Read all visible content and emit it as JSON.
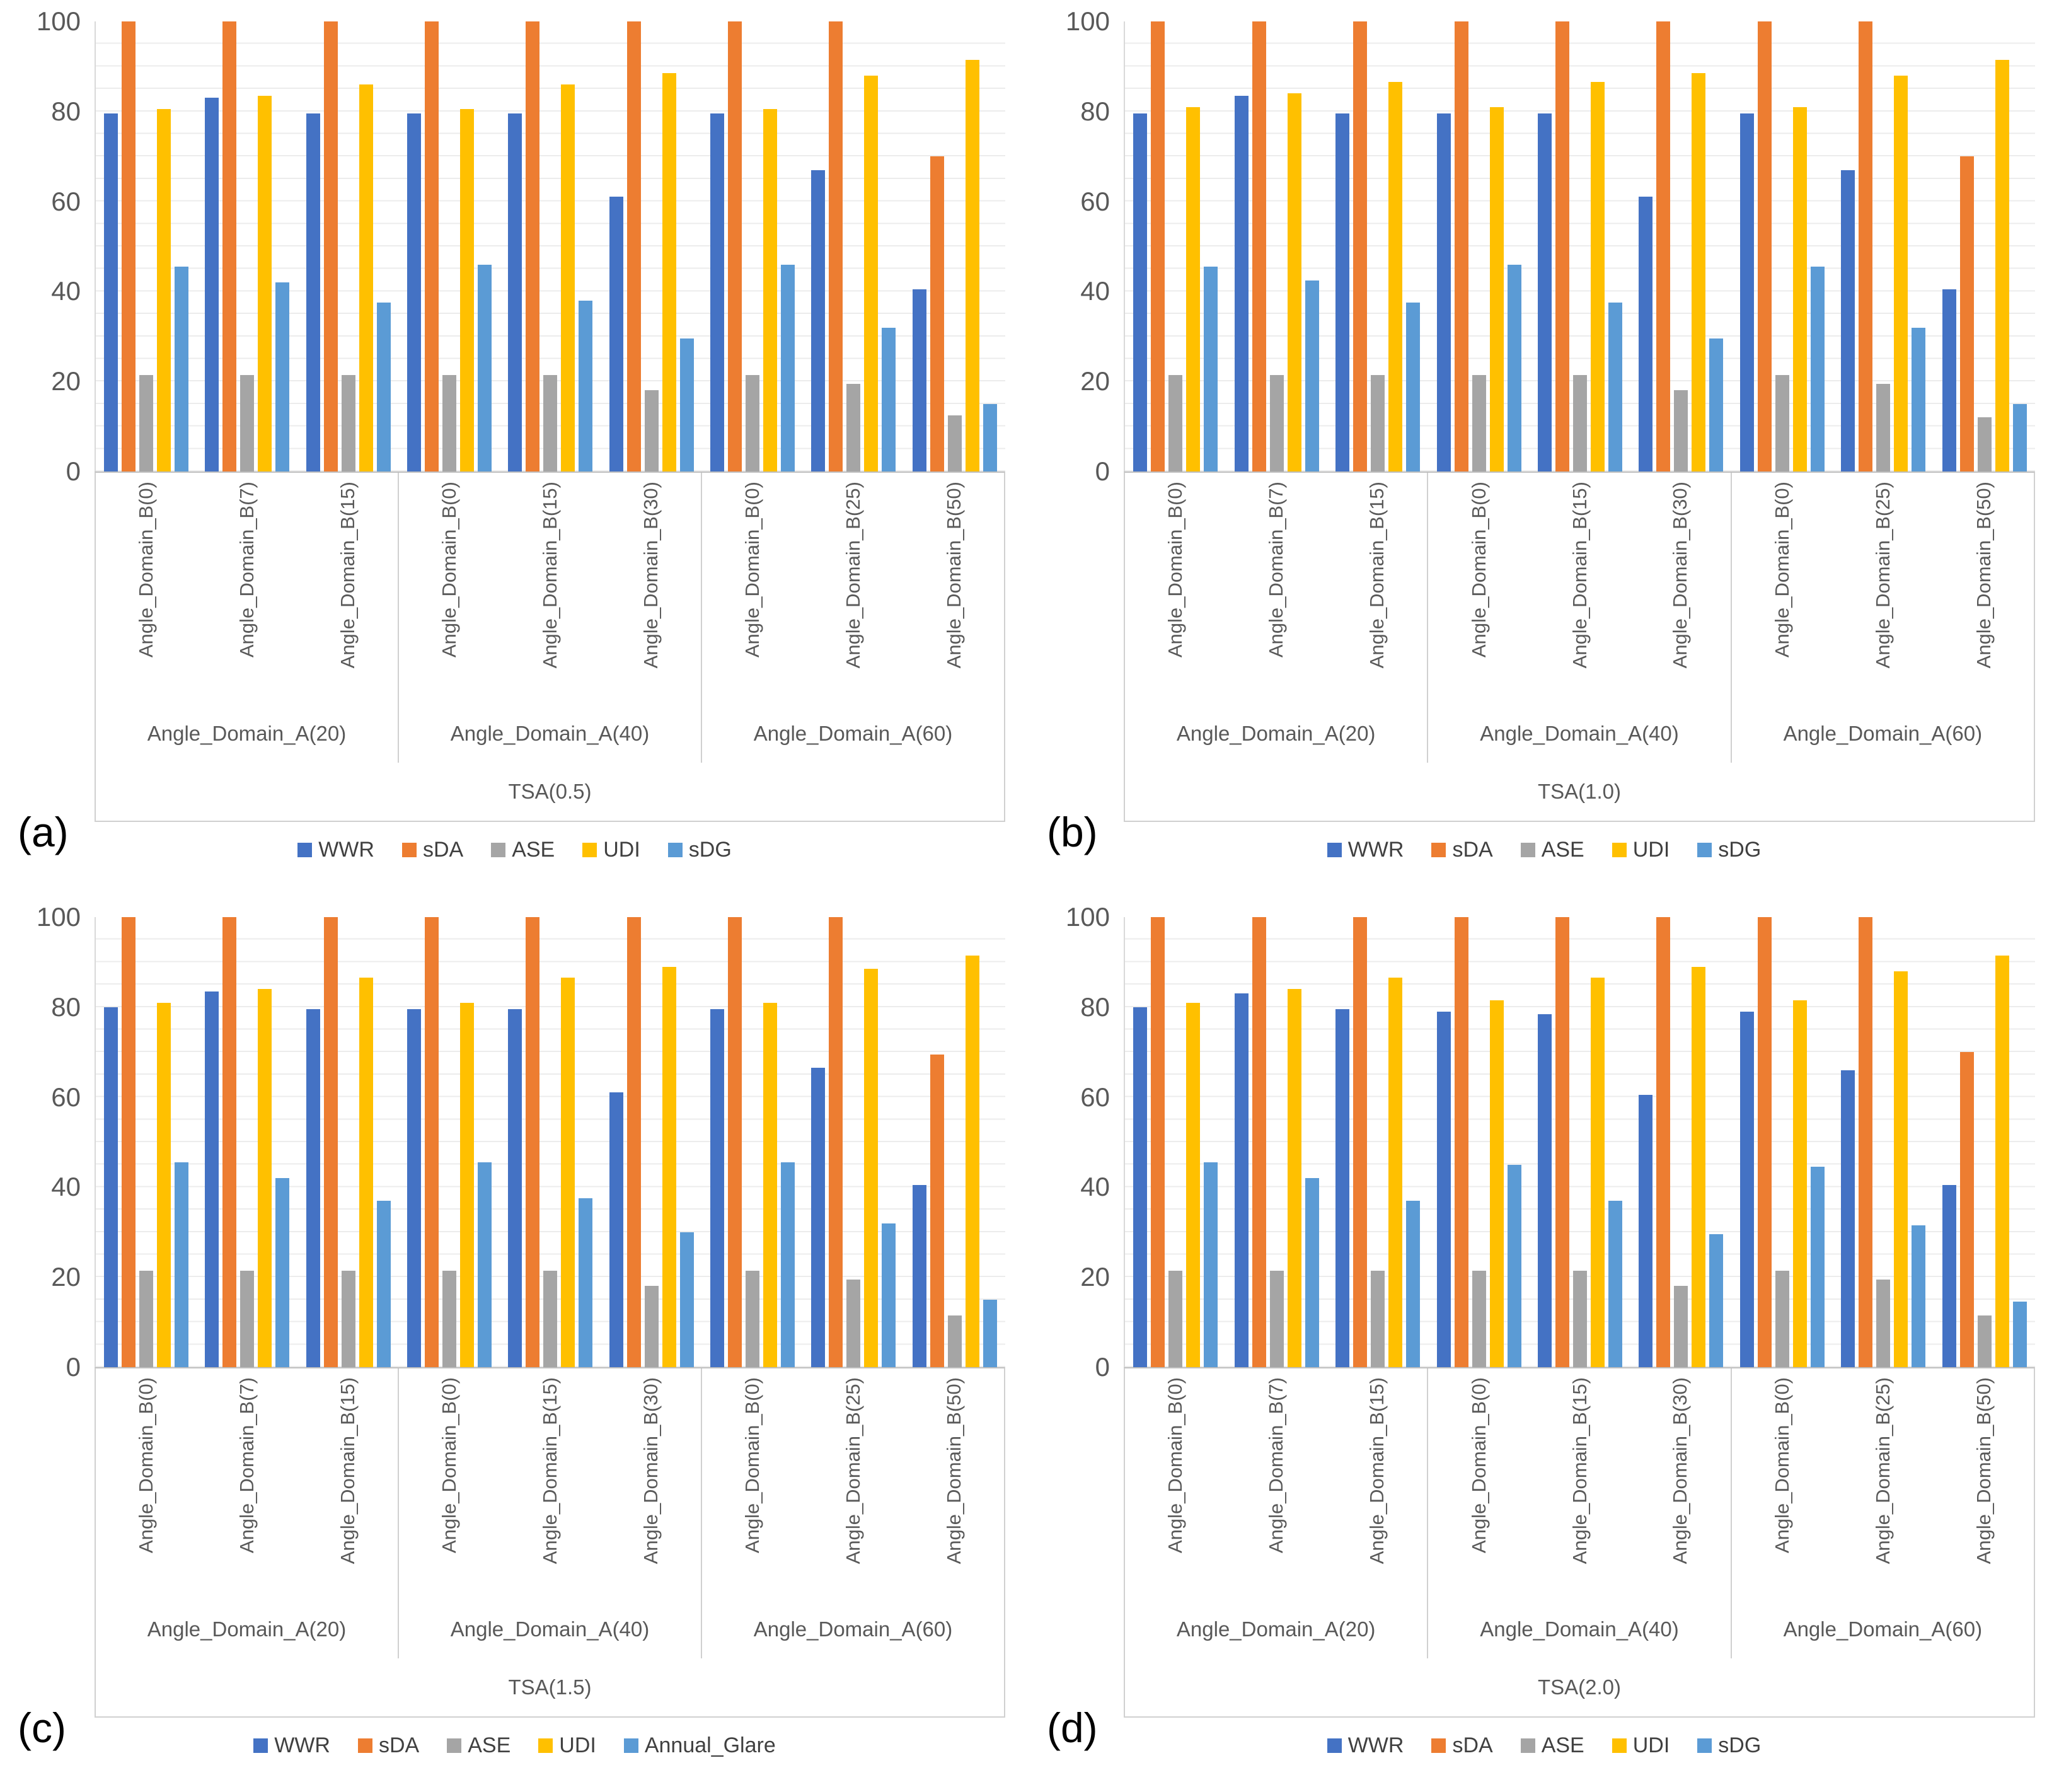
{
  "figure": {
    "y_axis": {
      "min": 0,
      "max": 100,
      "ticks": [
        0,
        20,
        40,
        60,
        80,
        100
      ],
      "minor_grid_step": 5,
      "grid_on": true
    },
    "series_colors": {
      "WWR": "#4472C4",
      "sDA": "#ED7D31",
      "ASE": "#A5A5A5",
      "UDI": "#FFC000",
      "sDG": "#5B9BD5",
      "Annual_Glare": "#5B9BD5"
    },
    "legend_position": "bottom-center"
  },
  "chart_data": [
    {
      "type": "bar",
      "panel_label": "(a)",
      "axis_title": "TSA(0.5)",
      "group_labels": [
        "Angle_Domain_A(20)",
        "Angle_Domain_A(40)",
        "Angle_Domain_A(60)"
      ],
      "categories": [
        [
          "Angle_Domain_B(0)",
          "Angle_Domain_B(7)",
          "Angle_Domain_B(15)"
        ],
        [
          "Angle_Domain_B(0)",
          "Angle_Domain_B(15)",
          "Angle_Domain_B(30)"
        ],
        [
          "Angle_Domain_B(0)",
          "Angle_Domain_B(25)",
          "Angle_Domain_B(50)"
        ]
      ],
      "ylim": [
        0,
        100
      ],
      "series": [
        {
          "name": "WWR",
          "values": [
            79.5,
            83,
            79.5,
            79.5,
            79.5,
            61,
            79.5,
            67,
            40.5
          ]
        },
        {
          "name": "sDA",
          "values": [
            100,
            100,
            100,
            100,
            100,
            100,
            100,
            100,
            70
          ]
        },
        {
          "name": "ASE",
          "values": [
            21.5,
            21.5,
            21.5,
            21.5,
            21.5,
            18,
            21.5,
            19.5,
            12.5
          ]
        },
        {
          "name": "UDI",
          "values": [
            80.5,
            83.5,
            86,
            80.5,
            86,
            88.5,
            80.5,
            88,
            91.5
          ]
        },
        {
          "name": "sDG",
          "values": [
            45.5,
            42,
            37.5,
            46,
            38,
            29.5,
            46,
            32,
            15
          ]
        }
      ]
    },
    {
      "type": "bar",
      "panel_label": "(b)",
      "axis_title": "TSA(1.0)",
      "group_labels": [
        "Angle_Domain_A(20)",
        "Angle_Domain_A(40)",
        "Angle_Domain_A(60)"
      ],
      "categories": [
        [
          "Angle_Domain_B(0)",
          "Angle_Domain_B(7)",
          "Angle_Domain_B(15)"
        ],
        [
          "Angle_Domain_B(0)",
          "Angle_Domain_B(15)",
          "Angle_Domain_B(30)"
        ],
        [
          "Angle_Domain_B(0)",
          "Angle_Domain_B(25)",
          "Angle_Domain_B(50)"
        ]
      ],
      "ylim": [
        0,
        100
      ],
      "series": [
        {
          "name": "WWR",
          "values": [
            79.5,
            83.5,
            79.5,
            79.5,
            79.5,
            61,
            79.5,
            67,
            40.5
          ]
        },
        {
          "name": "sDA",
          "values": [
            100,
            100,
            100,
            100,
            100,
            100,
            100,
            100,
            70
          ]
        },
        {
          "name": "ASE",
          "values": [
            21.5,
            21.5,
            21.5,
            21.5,
            21.5,
            18,
            21.5,
            19.5,
            12
          ]
        },
        {
          "name": "UDI",
          "values": [
            81,
            84,
            86.5,
            81,
            86.5,
            88.5,
            81,
            88,
            91.5
          ]
        },
        {
          "name": "sDG",
          "values": [
            45.5,
            42.5,
            37.5,
            46,
            37.5,
            29.5,
            45.5,
            32,
            15
          ]
        }
      ]
    },
    {
      "type": "bar",
      "panel_label": "(c)",
      "axis_title": "TSA(1.5)",
      "group_labels": [
        "Angle_Domain_A(20)",
        "Angle_Domain_A(40)",
        "Angle_Domain_A(60)"
      ],
      "categories": [
        [
          "Angle_Domain_B(0)",
          "Angle_Domain_B(7)",
          "Angle_Domain_B(15)"
        ],
        [
          "Angle_Domain_B(0)",
          "Angle_Domain_B(15)",
          "Angle_Domain_B(30)"
        ],
        [
          "Angle_Domain_B(0)",
          "Angle_Domain_B(25)",
          "Angle_Domain_B(50)"
        ]
      ],
      "ylim": [
        0,
        100
      ],
      "series": [
        {
          "name": "WWR",
          "values": [
            80,
            83.5,
            79.5,
            79.5,
            79.5,
            61,
            79.5,
            66.5,
            40.5
          ]
        },
        {
          "name": "sDA",
          "values": [
            100,
            100,
            100,
            100,
            100,
            100,
            100,
            100,
            69.5
          ]
        },
        {
          "name": "ASE",
          "values": [
            21.5,
            21.5,
            21.5,
            21.5,
            21.5,
            18,
            21.5,
            19.5,
            11.5
          ]
        },
        {
          "name": "UDI",
          "values": [
            81,
            84,
            86.5,
            81,
            86.5,
            89,
            81,
            88.5,
            91.5
          ]
        },
        {
          "name": "Annual_Glare",
          "values": [
            45.5,
            42,
            37,
            45.5,
            37.5,
            30,
            45.5,
            32,
            15
          ]
        }
      ]
    },
    {
      "type": "bar",
      "panel_label": "(d)",
      "axis_title": "TSA(2.0)",
      "group_labels": [
        "Angle_Domain_A(20)",
        "Angle_Domain_A(40)",
        "Angle_Domain_A(60)"
      ],
      "categories": [
        [
          "Angle_Domain_B(0)",
          "Angle_Domain_B(7)",
          "Angle_Domain_B(15)"
        ],
        [
          "Angle_Domain_B(0)",
          "Angle_Domain_B(15)",
          "Angle_Domain_B(30)"
        ],
        [
          "Angle_Domain_B(0)",
          "Angle_Domain_B(25)",
          "Angle_Domain_B(50)"
        ]
      ],
      "ylim": [
        0,
        100
      ],
      "series": [
        {
          "name": "WWR",
          "values": [
            80,
            83,
            79.5,
            79,
            78.5,
            60.5,
            79,
            66,
            40.5
          ]
        },
        {
          "name": "sDA",
          "values": [
            100,
            100,
            100,
            100,
            100,
            100,
            100,
            100,
            70
          ]
        },
        {
          "name": "ASE",
          "values": [
            21.5,
            21.5,
            21.5,
            21.5,
            21.5,
            18,
            21.5,
            19.5,
            11.5
          ]
        },
        {
          "name": "UDI",
          "values": [
            81,
            84,
            86.5,
            81.5,
            86.5,
            89,
            81.5,
            88,
            91.5
          ]
        },
        {
          "name": "sDG",
          "values": [
            45.5,
            42,
            37,
            45,
            37,
            29.5,
            44.5,
            31.5,
            14.5
          ]
        }
      ]
    }
  ]
}
